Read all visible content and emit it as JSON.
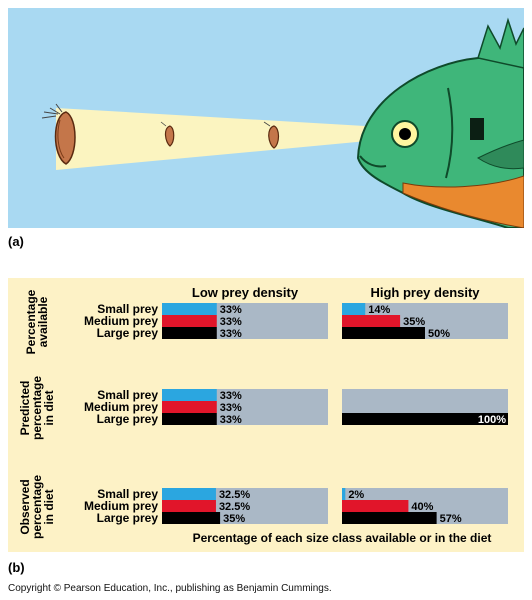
{
  "panel_a_label": "(a)",
  "panel_b_label": "(b)",
  "copyright": "Copyright © Pearson Education, Inc., publishing as Benjamin Cummings.",
  "colors": {
    "sky": "#a9d9f2",
    "beam": "#fbf4c0",
    "chart_bg": "#fdf2c6",
    "track": "#aab8c6",
    "small": "#2ba6e0",
    "medium": "#e1152a",
    "large": "#000000"
  },
  "icons": [
    "fish-icon",
    "prey-icon"
  ],
  "chart_data": {
    "type": "bar",
    "title": "",
    "columns": [
      "Low prey density",
      "High prey density"
    ],
    "categories": [
      "Small prey",
      "Medium prey",
      "Large prey"
    ],
    "xlabel": "Percentage of each size class available or in the diet",
    "xlim": [
      0,
      100
    ],
    "rows": [
      {
        "label_lines": [
          "Percentage",
          "available"
        ],
        "low": {
          "values": [
            33,
            33,
            33
          ],
          "labels": [
            "33%",
            "33%",
            "33%"
          ]
        },
        "high": {
          "values": [
            14,
            35,
            50
          ],
          "labels": [
            "14%",
            "35%",
            "50%"
          ]
        }
      },
      {
        "label_lines": [
          "Predicted",
          "percentage",
          "in diet"
        ],
        "low": {
          "values": [
            33,
            33,
            33
          ],
          "labels": [
            "33%",
            "33%",
            "33%"
          ]
        },
        "high": {
          "values": [
            0,
            0,
            100
          ],
          "labels": [
            "",
            "",
            "100%"
          ]
        }
      },
      {
        "label_lines": [
          "Observed",
          "percentage",
          "in diet"
        ],
        "low": {
          "values": [
            32.5,
            32.5,
            35
          ],
          "labels": [
            "32.5%",
            "32.5%",
            "35%"
          ]
        },
        "high": {
          "values": [
            2,
            40,
            57
          ],
          "labels": [
            "2%",
            "40%",
            "57%"
          ]
        }
      }
    ]
  }
}
